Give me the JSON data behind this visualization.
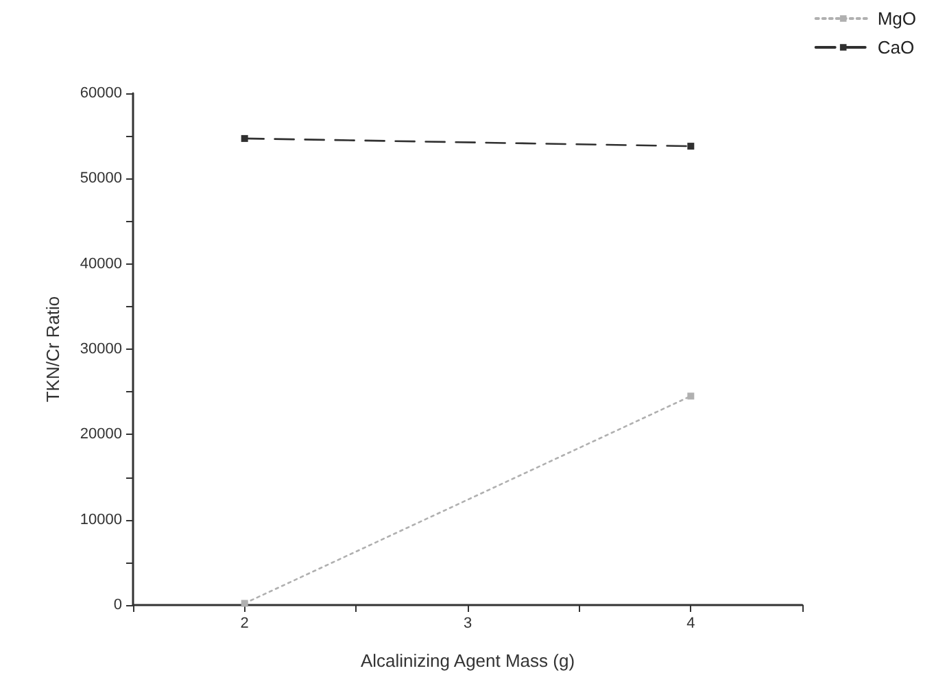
{
  "chart_data": {
    "type": "line",
    "xlabel": "Alcalinizing Agent Mass (g)",
    "ylabel": "TKN/Cr Ratio",
    "x": [
      2,
      4
    ],
    "series": [
      {
        "name": "MgO",
        "color": "#b0b0b0",
        "values": [
          200,
          24500
        ],
        "line_style": "dotted"
      },
      {
        "name": "CaO",
        "color": "#303030",
        "values": [
          54700,
          53800
        ],
        "line_style": "dashed"
      }
    ],
    "xlim": [
      1.5,
      4.5
    ],
    "xticks": [
      {
        "value": 1.5,
        "label": null
      },
      2,
      {
        "value": 2.5,
        "label": null
      },
      3,
      {
        "value": 3.5,
        "label": null
      },
      4,
      {
        "value": 4.5,
        "label": null
      }
    ],
    "ylim": [
      0,
      60000
    ],
    "yticks": [
      0,
      {
        "value": 5000,
        "label": null
      },
      10000,
      {
        "value": 15000,
        "label": null
      },
      20000,
      {
        "value": 25000,
        "label": null
      },
      30000,
      {
        "value": 35000,
        "label": null
      },
      40000,
      {
        "value": 45000,
        "label": null
      },
      50000,
      {
        "value": 55000,
        "label": null
      },
      60000
    ],
    "grid": false,
    "legend": "top right",
    "marker": "square"
  }
}
